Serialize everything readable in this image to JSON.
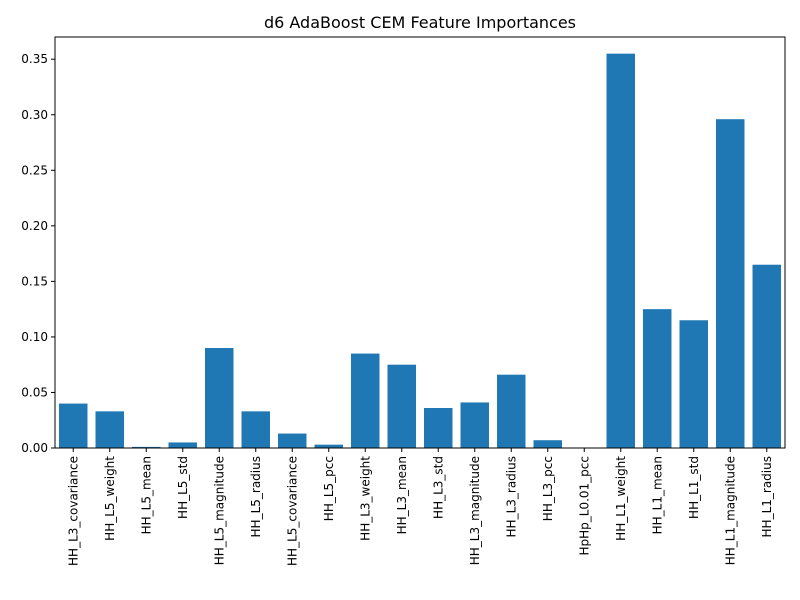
{
  "chart_data": {
    "type": "bar",
    "title": "d6 AdaBoost CEM Feature Importances",
    "xlabel": "",
    "ylabel": "",
    "ylim": [
      0,
      0.37
    ],
    "yticks": [
      "0.00",
      "0.05",
      "0.10",
      "0.15",
      "0.20",
      "0.25",
      "0.30",
      "0.35"
    ],
    "categories": [
      "HH_L3_covariance",
      "HH_L5_weight",
      "HH_L5_mean",
      "HH_L5_std",
      "HH_L5_magnitude",
      "HH_L5_radius",
      "HH_L5_covariance",
      "HH_L5_pcc",
      "HH_L3_weight",
      "HH_L3_mean",
      "HH_L3_std",
      "HH_L3_magnitude",
      "HH_L3_radius",
      "HH_L3_pcc",
      "HpHp_L0.01_pcc",
      "HH_L1_weight",
      "HH_L1_mean",
      "HH_L1_std",
      "HH_L1_magnitude",
      "HH_L1_radius"
    ],
    "values": [
      0.04,
      0.033,
      0.001,
      0.005,
      0.09,
      0.033,
      0.013,
      0.003,
      0.085,
      0.075,
      0.036,
      0.041,
      0.066,
      0.007,
      0.0,
      0.355,
      0.125,
      0.115,
      0.296,
      0.165
    ],
    "bar_color": "#1f77b4",
    "grid": false
  }
}
